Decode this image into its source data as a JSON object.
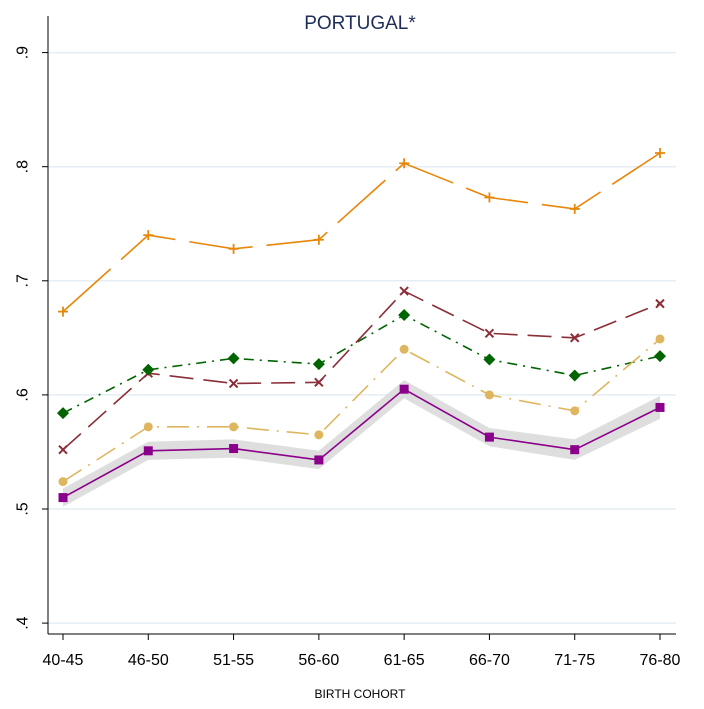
{
  "chart_data": {
    "type": "line",
    "title": "PORTUGAL*",
    "xlabel": "BIRTH COHORT",
    "ylabel": "",
    "categories": [
      "40-45",
      "46-50",
      "51-55",
      "56-60",
      "61-65",
      "66-70",
      "71-75",
      "76-80"
    ],
    "ylim": [
      0.4,
      0.9
    ],
    "yticks": [
      ".4",
      ".5",
      ".6",
      ".7",
      ".8",
      ".9"
    ],
    "grid": true,
    "series": [
      {
        "values": [
          0.51,
          0.551,
          0.553,
          0.543,
          0.605,
          0.563,
          0.552,
          0.589
        ],
        "color": "#8b008b",
        "marker": "square",
        "dash": "solid",
        "ci_lower": [
          0.502,
          0.543,
          0.545,
          0.535,
          0.597,
          0.555,
          0.543,
          0.579
        ],
        "ci_upper": [
          0.518,
          0.559,
          0.561,
          0.551,
          0.613,
          0.571,
          0.561,
          0.599
        ]
      },
      {
        "values": [
          0.524,
          0.572,
          0.572,
          0.565,
          0.64,
          0.6,
          0.586,
          0.649
        ],
        "color": "#dfb65f",
        "marker": "circle",
        "dash": "longdash-dot"
      },
      {
        "values": [
          0.552,
          0.619,
          0.61,
          0.611,
          0.691,
          0.654,
          0.65,
          0.68
        ],
        "color": "#8b2e38",
        "marker": "x",
        "dash": "longdash"
      },
      {
        "values": [
          0.584,
          0.622,
          0.632,
          0.627,
          0.67,
          0.631,
          0.617,
          0.634
        ],
        "color": "#006400",
        "marker": "diamond",
        "dash": "dash-dot"
      },
      {
        "values": [
          0.673,
          0.74,
          0.728,
          0.736,
          0.803,
          0.773,
          0.763,
          0.812
        ],
        "color": "#e8860a",
        "marker": "plus",
        "dash": "gapped"
      }
    ],
    "colors": {
      "grid": "#e4eef4",
      "axis": "#000000",
      "ci_band": "#d8d8d8",
      "title": "#1e2d59"
    }
  }
}
